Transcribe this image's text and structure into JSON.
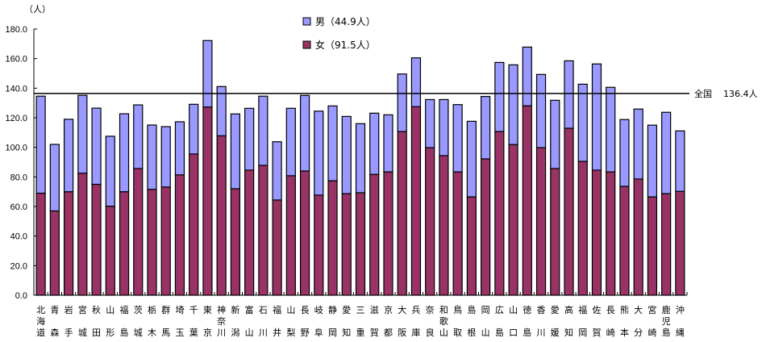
{
  "chart_data": {
    "type": "bar",
    "stacked": true,
    "title": "",
    "xlabel": "",
    "ylabel": "（人）",
    "ylim": [
      0,
      180
    ],
    "ytick_step": 20,
    "yticks": [
      "0.0",
      "20.0",
      "40.0",
      "60.0",
      "80.0",
      "100.0",
      "120.0",
      "140.0",
      "160.0",
      "180.0"
    ],
    "grid": false,
    "legend_position": "top-center",
    "categories": [
      "北海道",
      "青森",
      "岩手",
      "宮城",
      "秋田",
      "山形",
      "福島",
      "茨城",
      "栃木",
      "群馬",
      "埼玉",
      "千葉",
      "東京",
      "神奈川",
      "新潟",
      "富山",
      "石川",
      "福井",
      "山梨",
      "長野",
      "岐阜",
      "静岡",
      "愛知",
      "三重",
      "滋賀",
      "京都",
      "大阪",
      "兵庫",
      "奈良",
      "和歌山",
      "鳥取",
      "島根",
      "岡山",
      "広島",
      "山口",
      "徳島",
      "香川",
      "愛媛",
      "高知",
      "福岡",
      "佐賀",
      "長崎",
      "熊本",
      "大分",
      "宮崎",
      "鹿児島",
      "沖縄"
    ],
    "series": [
      {
        "name": "女",
        "legend_label": "女（91.5人）",
        "color": "#993366",
        "values": [
          69.0,
          57.0,
          70.0,
          82.5,
          75.0,
          60.2,
          70.0,
          85.7,
          71.6,
          73.2,
          81.4,
          95.5,
          127.3,
          107.8,
          72.0,
          84.6,
          87.8,
          64.4,
          80.8,
          84.0,
          67.7,
          77.4,
          68.7,
          69.3,
          81.7,
          83.4,
          110.7,
          127.5,
          99.8,
          94.4,
          83.4,
          66.5,
          92.2,
          110.7,
          101.9,
          128.1,
          99.8,
          85.7,
          112.9,
          90.5,
          84.6,
          83.4,
          73.6,
          78.6,
          66.5,
          68.7,
          70.2
        ]
      },
      {
        "name": "男",
        "legend_label": "男（44.9人）",
        "color": "#9999FF",
        "values": [
          65.6,
          45.0,
          49.0,
          52.7,
          51.5,
          47.3,
          52.7,
          43.0,
          43.5,
          40.8,
          35.9,
          33.6,
          44.9,
          33.3,
          50.6,
          41.8,
          46.8,
          39.4,
          45.6,
          51.1,
          56.8,
          50.6,
          52.2,
          46.7,
          41.4,
          38.6,
          38.9,
          33.0,
          32.5,
          37.9,
          45.5,
          51.1,
          42.2,
          46.7,
          53.9,
          39.7,
          49.5,
          46.1,
          45.6,
          52.2,
          71.8,
          57.2,
          45.2,
          47.3,
          48.5,
          55.0,
          40.9
        ]
      }
    ],
    "reference_line": {
      "label": "全国",
      "value": 136.4,
      "value_text": "136.4人"
    }
  }
}
